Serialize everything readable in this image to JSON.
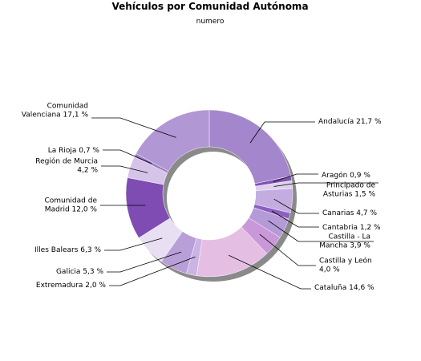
{
  "chart_data": {
    "type": "pie",
    "donut": true,
    "title": "Vehículos por Comunidad Autónoma",
    "subtitle": "numero",
    "slices": [
      {
        "name": "Andalucía",
        "value": 21.7,
        "label": [
          "Andalucía 21,7 %"
        ],
        "color": "#a386cc"
      },
      {
        "name": "Aragón",
        "value": 0.9,
        "label": [
          "Aragón 0,9 %"
        ],
        "color": "#7f52b5"
      },
      {
        "name": "Principado de Asturias",
        "value": 1.5,
        "label": [
          "Principado de",
          "Asturias 1,5 %"
        ],
        "color": "#ddd0ec"
      },
      {
        "name": "Canarias",
        "value": 4.7,
        "label": [
          "Canarias 4,7 %"
        ],
        "color": "#c2ace0"
      },
      {
        "name": "Cantabria",
        "value": 1.2,
        "label": [
          "Cantabria 1,2 %"
        ],
        "color": "#8d5fc0"
      },
      {
        "name": "Castilla - La Mancha",
        "value": 3.9,
        "label": [
          "Castilla - La",
          "Mancha 3,9 %"
        ],
        "color": "#b49ad7"
      },
      {
        "name": "Castilla y León",
        "value": 4.0,
        "label": [
          "Castilla y León",
          "4,0 %"
        ],
        "color": "#c998d8"
      },
      {
        "name": "Cataluña",
        "value": 14.6,
        "label": [
          "Cataluña 14,6 %"
        ],
        "color": "#e5bfe3"
      },
      {
        "name": "Extremadura",
        "value": 2.0,
        "label": [
          "Extremadura 2,0 %"
        ],
        "color": "#cbb4e4"
      },
      {
        "name": "Galicia",
        "value": 5.3,
        "label": [
          "Galicia 5,3 %"
        ],
        "color": "#b89fd8"
      },
      {
        "name": "Illes Balears",
        "value": 6.3,
        "label": [
          "Illes Balears 6,3 %"
        ],
        "color": "#e8dff3"
      },
      {
        "name": "Comunidad de Madrid",
        "value": 12.0,
        "label": [
          "Comunidad de",
          "Madrid 12,0 %"
        ],
        "color": "#7e4cb2"
      },
      {
        "name": "Región de Murcia",
        "value": 4.2,
        "label": [
          "Región de Murcia",
          "4,2 %"
        ],
        "color": "#d6c3e8"
      },
      {
        "name": "La Rioja",
        "value": 0.7,
        "label": [
          "La Rioja 0,7 %"
        ],
        "color": "#9c7cc5"
      },
      {
        "name": "Comunidad Valenciana",
        "value": 17.1,
        "label": [
          "Comunidad",
          "Valenciana 17,1 %"
        ],
        "color": "#b197d4"
      }
    ],
    "legend": "none"
  }
}
